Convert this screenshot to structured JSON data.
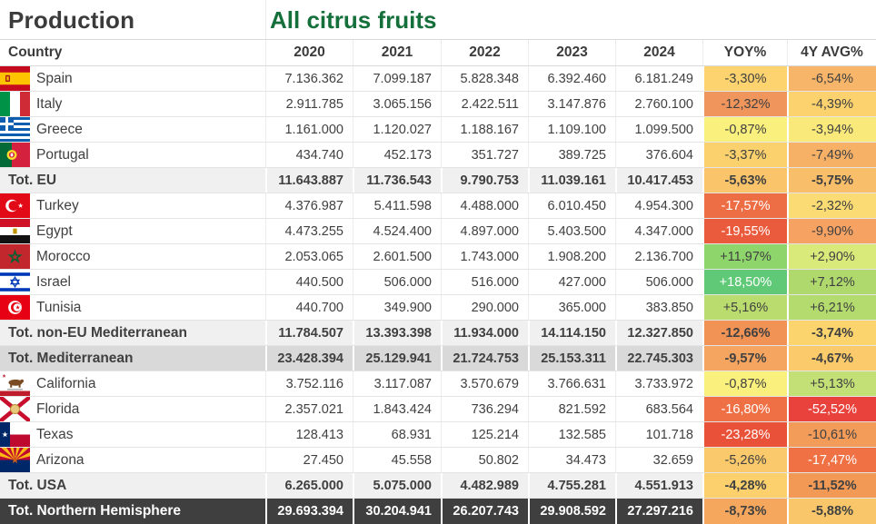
{
  "title": {
    "left": "Production",
    "right": "All citrus fruits"
  },
  "palette": {
    "title_text": "#3b3b3b",
    "title_accent_green": "#156f3b",
    "body_text": "#404040",
    "white_text": "#ffffff",
    "subtotal_bg": "#f0f0f0",
    "subtotal2_bg": "#d9d9d9",
    "grand_bg": "#3f3f3f"
  },
  "columns": [
    "Country",
    "2020",
    "2021",
    "2022",
    "2023",
    "2024",
    "YOY%",
    "4Y AVG%"
  ],
  "rows": [
    {
      "label": "Spain",
      "flag": "spain",
      "type": "country",
      "values": [
        "7.136.362",
        "7.099.187",
        "5.828.348",
        "6.392.460",
        "6.181.249"
      ],
      "yoy": {
        "text": "-3,30%",
        "bg": "#FCD36E",
        "fg": "#404040"
      },
      "avg": {
        "text": "-6,54%",
        "bg": "#F7B569",
        "fg": "#404040"
      }
    },
    {
      "label": "Italy",
      "flag": "italy",
      "type": "country",
      "values": [
        "2.911.785",
        "3.065.156",
        "2.422.511",
        "3.147.876",
        "2.760.100"
      ],
      "yoy": {
        "text": "-12,32%",
        "bg": "#F0955B",
        "fg": "#404040"
      },
      "avg": {
        "text": "-4,39%",
        "bg": "#FBD26E",
        "fg": "#404040"
      }
    },
    {
      "label": "Greece",
      "flag": "greece",
      "type": "country",
      "values": [
        "1.161.000",
        "1.120.027",
        "1.188.167",
        "1.109.100",
        "1.099.500"
      ],
      "yoy": {
        "text": "-0,87%",
        "bg": "#FAF07E",
        "fg": "#404040"
      },
      "avg": {
        "text": "-3,94%",
        "bg": "#F9E87A",
        "fg": "#404040"
      }
    },
    {
      "label": "Portugal",
      "flag": "portugal",
      "type": "country",
      "values": [
        "434.740",
        "452.173",
        "351.727",
        "389.725",
        "376.604"
      ],
      "yoy": {
        "text": "-3,37%",
        "bg": "#FBD16D",
        "fg": "#404040"
      },
      "avg": {
        "text": "-7,49%",
        "bg": "#F7B167",
        "fg": "#404040"
      }
    },
    {
      "label": "Tot. EU",
      "flag": null,
      "type": "subtotal",
      "values": [
        "11.643.887",
        "11.736.543",
        "9.790.753",
        "11.039.161",
        "10.417.453"
      ],
      "yoy": {
        "text": "-5,63%",
        "bg": "#FAC46B",
        "fg": "#404040"
      },
      "avg": {
        "text": "-5,75%",
        "bg": "#F9BE69",
        "fg": "#404040"
      }
    },
    {
      "label": "Turkey",
      "flag": "turkey",
      "type": "country",
      "values": [
        "4.376.987",
        "5.411.598",
        "4.488.000",
        "6.010.450",
        "4.954.300"
      ],
      "yoy": {
        "text": "-17,57%",
        "bg": "#ED6D44",
        "fg": "#ffffff"
      },
      "avg": {
        "text": "-2,32%",
        "bg": "#FBDC74",
        "fg": "#404040"
      }
    },
    {
      "label": "Egypt",
      "flag": "egypt",
      "type": "country",
      "values": [
        "4.473.255",
        "4.524.400",
        "4.897.000",
        "5.403.500",
        "4.347.000"
      ],
      "yoy": {
        "text": "-19,55%",
        "bg": "#EA5B3D",
        "fg": "#ffffff"
      },
      "avg": {
        "text": "-9,90%",
        "bg": "#F5A263",
        "fg": "#404040"
      }
    },
    {
      "label": "Morocco",
      "flag": "morocco",
      "type": "country",
      "values": [
        "2.053.065",
        "2.601.500",
        "1.743.000",
        "1.908.200",
        "2.136.700"
      ],
      "yoy": {
        "text": "+11,97%",
        "bg": "#8ED66C",
        "fg": "#404040"
      },
      "avg": {
        "text": "+2,90%",
        "bg": "#D9EA7B",
        "fg": "#404040"
      }
    },
    {
      "label": "Israel",
      "flag": "israel",
      "type": "country",
      "values": [
        "440.500",
        "506.000",
        "516.000",
        "427.000",
        "506.000"
      ],
      "yoy": {
        "text": "+18,50%",
        "bg": "#5FC977",
        "fg": "#ffffff"
      },
      "avg": {
        "text": "+7,12%",
        "bg": "#AFD96D",
        "fg": "#404040"
      }
    },
    {
      "label": "Tunisia",
      "flag": "tunisia",
      "type": "country",
      "values": [
        "440.700",
        "349.900",
        "290.000",
        "365.000",
        "383.850"
      ],
      "yoy": {
        "text": "+5,16%",
        "bg": "#BADC6F",
        "fg": "#404040"
      },
      "avg": {
        "text": "+6,21%",
        "bg": "#B4DB6E",
        "fg": "#404040"
      }
    },
    {
      "label": "Tot. non-EU Mediterranean",
      "flag": null,
      "type": "subtotal",
      "values": [
        "11.784.507",
        "13.393.398",
        "11.934.000",
        "14.114.150",
        "12.327.850"
      ],
      "yoy": {
        "text": "-12,66%",
        "bg": "#F19355",
        "fg": "#404040"
      },
      "avg": {
        "text": "-3,74%",
        "bg": "#FBD46E",
        "fg": "#404040"
      }
    },
    {
      "label": "Tot. Mediterranean",
      "flag": null,
      "type": "subtotal2",
      "values": [
        "23.428.394",
        "25.129.941",
        "21.724.753",
        "25.153.311",
        "22.745.303"
      ],
      "yoy": {
        "text": "-9,57%",
        "bg": "#F5A55F",
        "fg": "#404040"
      },
      "avg": {
        "text": "-4,67%",
        "bg": "#FACA6B",
        "fg": "#404040"
      }
    },
    {
      "label": "California",
      "flag": "california",
      "type": "country",
      "values": [
        "3.752.116",
        "3.117.087",
        "3.570.679",
        "3.766.631",
        "3.733.972"
      ],
      "yoy": {
        "text": "-0,87%",
        "bg": "#FAF07E",
        "fg": "#404040"
      },
      "avg": {
        "text": "+5,13%",
        "bg": "#C3E076",
        "fg": "#404040"
      }
    },
    {
      "label": "Florida",
      "flag": "florida",
      "type": "country",
      "values": [
        "2.357.021",
        "1.843.424",
        "736.294",
        "821.592",
        "683.564"
      ],
      "yoy": {
        "text": "-16,80%",
        "bg": "#EF7044",
        "fg": "#ffffff"
      },
      "avg": {
        "text": "-52,52%",
        "bg": "#E9423C",
        "fg": "#ffffff"
      }
    },
    {
      "label": "Texas",
      "flag": "texas",
      "type": "country",
      "values": [
        "128.413",
        "68.931",
        "125.214",
        "132.585",
        "101.718"
      ],
      "yoy": {
        "text": "-23,28%",
        "bg": "#E95139",
        "fg": "#ffffff"
      },
      "avg": {
        "text": "-10,61%",
        "bg": "#F39B58",
        "fg": "#404040"
      }
    },
    {
      "label": "Arizona",
      "flag": "arizona",
      "type": "country",
      "values": [
        "27.450",
        "45.558",
        "50.802",
        "34.473",
        "32.659"
      ],
      "yoy": {
        "text": "-5,26%",
        "bg": "#F9C96C",
        "fg": "#404040"
      },
      "avg": {
        "text": "-17,47%",
        "bg": "#EF7144",
        "fg": "#ffffff"
      }
    },
    {
      "label": "Tot. USA",
      "flag": null,
      "type": "subtotal",
      "values": [
        "6.265.000",
        "5.075.000",
        "4.482.989",
        "4.755.281",
        "4.551.913"
      ],
      "yoy": {
        "text": "-4,28%",
        "bg": "#FBD06D",
        "fg": "#404040"
      },
      "avg": {
        "text": "-11,52%",
        "bg": "#F29A55",
        "fg": "#404040"
      }
    },
    {
      "label": "Tot. Northern Hemisphere",
      "flag": null,
      "type": "grand",
      "values": [
        "29.693.394",
        "30.204.941",
        "26.207.743",
        "29.908.592",
        "27.297.216"
      ],
      "yoy": {
        "text": "-8,73%",
        "bg": "#F5A85D",
        "fg": "#404040"
      },
      "avg": {
        "text": "-5,88%",
        "bg": "#F9C76A",
        "fg": "#404040"
      }
    }
  ]
}
